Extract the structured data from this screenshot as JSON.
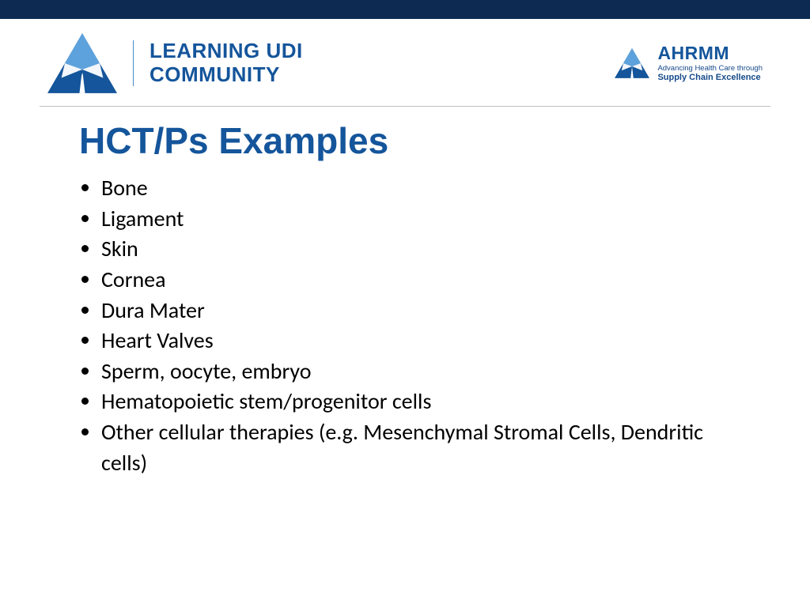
{
  "colors": {
    "top_bar": "#0d2b52",
    "accent_blue": "#14559b",
    "light_blue": "#5da2dd",
    "divider": "#4a8bc8",
    "hr": "#bfbfbf",
    "title": "#14559b",
    "ahrmm_tag": "#164a8a"
  },
  "header": {
    "logo_line1": "LEARNING UDI",
    "logo_line2": "COMMUNITY",
    "ahrmm_title": "AHRMM",
    "ahrmm_tag1": "Advancing Health Care through",
    "ahrmm_tag2": "Supply Chain Excellence"
  },
  "slide": {
    "title": "HCT/Ps Examples",
    "bullets": [
      "Bone",
      "Ligament",
      "Skin",
      "Cornea",
      "Dura Mater",
      "Heart Valves",
      "Sperm, oocyte, embryo",
      "Hematopoietic stem/progenitor cells",
      "Other cellular therapies (e.g. Mesenchymal Stromal Cells, Dendritic cells)"
    ]
  }
}
